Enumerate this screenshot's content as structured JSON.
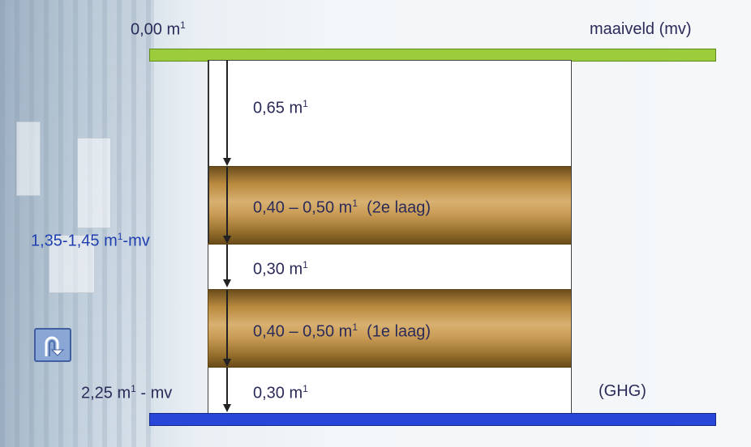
{
  "labels": {
    "ground_level": "0,00 m",
    "ground_level_sup": "1",
    "maaiveld": "maaiveld (mv)",
    "depth_top": "0,65 m",
    "depth_top_sup": "1",
    "layer2": "0,40 – 0,50 m",
    "layer2_sup": "1",
    "layer2_suffix": "(2e laag)",
    "gap": "0,30 m",
    "gap_sup": "1",
    "layer1": "0,40 – 0,50 m",
    "layer1_sup": "1",
    "layer1_suffix": "(1e laag)",
    "bottom": "0,30 m",
    "bottom_sup": "1",
    "left_mid_a": "1,35-1,45 m",
    "left_mid_sup": "1",
    "left_mid_b": "-mv",
    "left_bottom_a": "2,25 m",
    "left_bottom_sup": "1",
    "left_bottom_b": " - mv",
    "ghg": "(GHG)"
  },
  "colors": {
    "maaiveld_bar": "#9ccc3c",
    "ghg_bar": "#2847d8",
    "pipe": "#c99c55",
    "blue_text": "#1f3fb0"
  },
  "icons": {
    "back": "u-turn-arrow-icon"
  }
}
